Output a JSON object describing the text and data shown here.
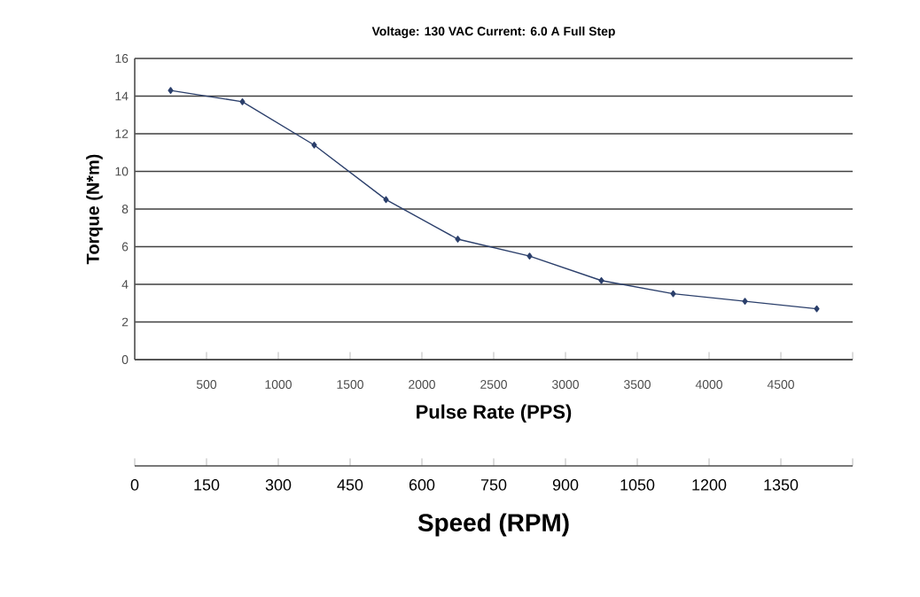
{
  "chart_data": {
    "type": "line",
    "title": "Voltage:  130 VAC     Current:  6.0 A     Full Step",
    "xlabel": "Pulse Rate (PPS)",
    "ylabel": "Torque (N*m)",
    "x2label": "Speed (RPM)",
    "x": [
      250,
      750,
      1250,
      1750,
      2250,
      2750,
      3250,
      3750,
      4250,
      4750
    ],
    "values": [
      14.3,
      13.7,
      11.4,
      8.5,
      6.4,
      5.5,
      4.2,
      3.5,
      3.1,
      2.7
    ],
    "color": "#2b3f6b",
    "marker": "diamond",
    "line_style": "solid",
    "grid": "y",
    "xlim": [
      0,
      5000
    ],
    "xticks": [
      500,
      1000,
      1500,
      2000,
      2500,
      3000,
      3500,
      4000,
      4500,
      {
        "value": 5000,
        "label": null
      }
    ],
    "ylim": [
      0,
      16
    ],
    "yticks": [
      0,
      2,
      4,
      6,
      8,
      10,
      12,
      14,
      16
    ],
    "x2lim": [
      0,
      1500
    ],
    "x2ticks": [
      0,
      150,
      300,
      450,
      600,
      750,
      900,
      1050,
      1200,
      1350,
      {
        "value": 1500,
        "label": null
      }
    ]
  }
}
